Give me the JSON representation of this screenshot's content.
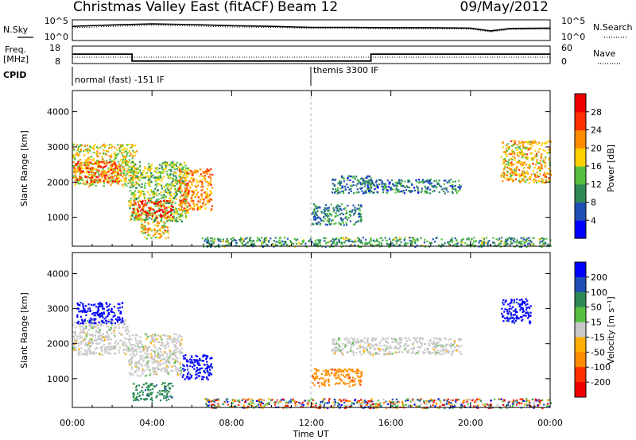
{
  "header": {
    "title": "Christmas Valley East (fitACF)",
    "beam": "Beam 12",
    "date": "09/May/2012"
  },
  "side_labels": {
    "nsky": "N.Sky",
    "nsearch": "N.Search",
    "freq_line1": "Freq.",
    "freq_line2": "[MHz]",
    "nave": "Nave",
    "cpid": "CPID"
  },
  "chart_data": [
    {
      "type": "line",
      "panel": "noise",
      "yticks_left": [
        "10^5",
        "10^0"
      ],
      "yticks_right": [
        "10^5",
        "10^0"
      ],
      "x": [
        0,
        2,
        4,
        6,
        8,
        10,
        12,
        14,
        16,
        18,
        20,
        21,
        22,
        24
      ],
      "series": [
        {
          "style": "solid",
          "values": [
            3.6,
            4.0,
            4.3,
            4.1,
            3.8,
            3.6,
            3.3,
            3.3,
            3.2,
            3.2,
            3.1,
            2.3,
            3.0,
            3.1
          ]
        },
        {
          "style": "dotted",
          "values": [
            3.2,
            3.6,
            3.9,
            3.7,
            3.4,
            3.3,
            3.0,
            3.0,
            2.9,
            2.9,
            2.8,
            2.0,
            2.7,
            2.8
          ]
        }
      ]
    },
    {
      "type": "line",
      "panel": "frequency",
      "yticks_left": [
        "18",
        "8"
      ],
      "yticks_right": [
        "60",
        "0"
      ],
      "series": [
        {
          "style": "solid",
          "x": [
            0,
            3,
            3,
            15,
            15,
            24
          ],
          "values": [
            13.5,
            13.5,
            8.6,
            8.6,
            13.5,
            13.5
          ]
        },
        {
          "style": "dotted",
          "x": [
            0,
            24
          ],
          "values": [
            20,
            20
          ]
        }
      ]
    },
    {
      "type": "table",
      "panel": "cpid",
      "segments": [
        {
          "label": "normal (fast) -151 IF",
          "start": 0
        },
        {
          "label": "themis 3300 IF",
          "start": 12
        }
      ]
    },
    {
      "type": "heatmap",
      "panel": "power",
      "ylabel": "Slant Range [km]",
      "yticks": [
        "1000",
        "2000",
        "3000",
        "4000"
      ],
      "ylim": [
        180,
        4600
      ],
      "xlim": [
        0,
        24
      ],
      "colorbar": {
        "label": "Power [dB]",
        "ticks": [
          "4",
          "8",
          "12",
          "16",
          "20",
          "24",
          "28"
        ],
        "range": [
          0,
          32
        ],
        "colors": [
          "#0000ff",
          "#1e4fb4",
          "#2e8b57",
          "#55c040",
          "#ffd000",
          "#ff8c00",
          "#ff3000",
          "#ee0000"
        ]
      },
      "echoes": [
        {
          "t0": 0.0,
          "t1": 3.2,
          "r0": 1900,
          "r1": 3100,
          "level": 0.55
        },
        {
          "t0": 0.0,
          "t1": 2.4,
          "r0": 2000,
          "r1": 2600,
          "level": 0.78
        },
        {
          "t0": 2.8,
          "t1": 5.8,
          "r0": 900,
          "r1": 2600,
          "level": 0.45
        },
        {
          "t0": 3.0,
          "t1": 5.0,
          "r0": 1000,
          "r1": 1500,
          "level": 0.85
        },
        {
          "t0": 5.3,
          "t1": 7.0,
          "r0": 1200,
          "r1": 2400,
          "level": 0.68
        },
        {
          "t0": 3.4,
          "t1": 4.8,
          "r0": 400,
          "r1": 900,
          "level": 0.6
        },
        {
          "t0": 12.0,
          "t1": 14.5,
          "r0": 800,
          "r1": 1400,
          "level": 0.3
        },
        {
          "t0": 13.0,
          "t1": 15.0,
          "r0": 1700,
          "r1": 2200,
          "level": 0.28
        },
        {
          "t0": 14.5,
          "t1": 19.5,
          "r0": 1700,
          "r1": 2100,
          "level": 0.28
        },
        {
          "t0": 21.5,
          "t1": 24.0,
          "r0": 2000,
          "r1": 3200,
          "level": 0.6
        },
        {
          "t0": 6.5,
          "t1": 24.0,
          "r0": 180,
          "r1": 450,
          "level": 0.35
        }
      ]
    },
    {
      "type": "heatmap",
      "panel": "velocity",
      "ylabel": "Slant Range [km]",
      "yticks": [
        "1000",
        "2000",
        "3000",
        "4000"
      ],
      "ylim": [
        180,
        4600
      ],
      "xlim": [
        0,
        24
      ],
      "xticks": [
        "00:00",
        "04:00",
        "08:00",
        "12:00",
        "16:00",
        "20:00",
        "00:00"
      ],
      "xlabel": "Time UT",
      "colorbar": {
        "label": "Velocity [m s⁻¹]",
        "ticks": [
          "200",
          "100",
          "50",
          "15",
          "-15",
          "-50",
          "-100",
          "-200"
        ],
        "colors": [
          "#0000ff",
          "#1e4fb4",
          "#2e8b57",
          "#55c040",
          "#c8c8c8",
          "#ffb000",
          "#ff8c00",
          "#ff3000",
          "#ee0000"
        ]
      },
      "echoes": [
        {
          "t0": 0.0,
          "t1": 2.8,
          "r0": 1700,
          "r1": 2700,
          "vel": "-15 to 15"
        },
        {
          "t0": 2.8,
          "t1": 5.5,
          "r0": 1100,
          "r1": 2300,
          "vel": "-15 to 15"
        },
        {
          "t0": 0.2,
          "t1": 2.5,
          "r0": 2600,
          "r1": 3200,
          "vel": "100 to 200"
        },
        {
          "t0": 5.5,
          "t1": 7.0,
          "r0": 1000,
          "r1": 1700,
          "vel": "100 to 200"
        },
        {
          "t0": 3.0,
          "t1": 5.0,
          "r0": 400,
          "r1": 900,
          "vel": "50 to 100"
        },
        {
          "t0": 12.0,
          "t1": 14.5,
          "r0": 800,
          "r1": 1300,
          "vel": "-100 to -50"
        },
        {
          "t0": 13.0,
          "t1": 19.5,
          "r0": 1700,
          "r1": 2200,
          "vel": "-15 to 15"
        },
        {
          "t0": 21.5,
          "t1": 23.0,
          "r0": 2600,
          "r1": 3300,
          "vel": "100 to 200"
        },
        {
          "t0": 6.5,
          "t1": 24.0,
          "r0": 180,
          "r1": 450,
          "vel": "mixed"
        }
      ]
    }
  ]
}
